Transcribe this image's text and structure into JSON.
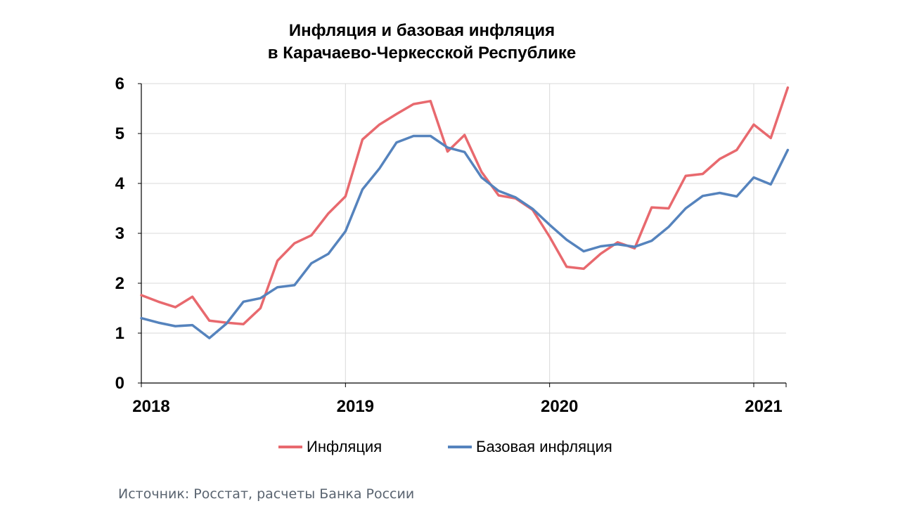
{
  "chart_data": {
    "type": "line",
    "title_line1": "Инфляция и базовая инфляция",
    "title_line2": "в Карачаево-Черкесской Республике",
    "xlabel": "",
    "ylabel": "",
    "ylim": [
      0,
      6
    ],
    "y_ticks": [
      "0",
      "1",
      "2",
      "3",
      "4",
      "5",
      "6"
    ],
    "x_tick_labels": [
      "2018",
      "2019",
      "2020",
      "2021"
    ],
    "x_start": "2018-01",
    "grid": true,
    "legend_position": "bottom",
    "series": [
      {
        "name": "Инфляция",
        "color": "#e8696e",
        "values": [
          1.76,
          1.63,
          1.52,
          1.73,
          1.25,
          1.21,
          1.18,
          1.5,
          2.45,
          2.8,
          2.96,
          3.4,
          3.74,
          4.88,
          5.18,
          5.39,
          5.59,
          5.65,
          4.64,
          4.97,
          4.23,
          3.76,
          3.7,
          3.47,
          2.93,
          2.33,
          2.29,
          2.59,
          2.82,
          2.7,
          3.52,
          3.5,
          4.15,
          4.19,
          4.49,
          4.67,
          5.18,
          4.91,
          5.92
        ]
      },
      {
        "name": "Базовая инфляция",
        "color": "#5583bd",
        "values": [
          1.3,
          1.21,
          1.14,
          1.16,
          0.9,
          1.19,
          1.63,
          1.7,
          1.92,
          1.96,
          2.4,
          2.59,
          3.04,
          3.88,
          4.3,
          4.82,
          4.95,
          4.95,
          4.72,
          4.63,
          4.12,
          3.85,
          3.72,
          3.49,
          3.17,
          2.87,
          2.64,
          2.74,
          2.78,
          2.73,
          2.85,
          3.13,
          3.5,
          3.75,
          3.81,
          3.74,
          4.12,
          3.98,
          4.67
        ]
      }
    ]
  },
  "source": "Источник: Росстат, расчеты Банка России"
}
